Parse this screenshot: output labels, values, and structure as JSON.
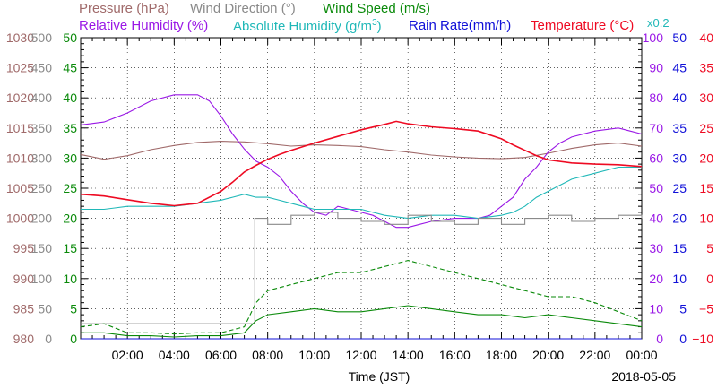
{
  "chart_data": {
    "type": "line",
    "xlabel": "Time (JST)",
    "date": "2018-05-05",
    "x_ticks": [
      "02:00",
      "04:00",
      "06:00",
      "08:00",
      "10:00",
      "12:00",
      "14:00",
      "16:00",
      "18:00",
      "20:00",
      "22:00",
      "00:00"
    ],
    "x_range_hours": [
      0,
      24
    ],
    "legend": [
      {
        "label": "Pressure (hPa)",
        "color": "#a06a6a"
      },
      {
        "label": "Wind Direction (°)",
        "color": "#8a8a8a"
      },
      {
        "label": "Wind Speed (m/s)",
        "color": "#0a8a0a"
      },
      {
        "label": "Relative Humidity (%)",
        "color": "#9a18e6"
      },
      {
        "label": "Absolute Humidity (g/m",
        "sup": "3",
        "close": ")",
        "color": "#20b8b8"
      },
      {
        "label": "Rain Rate(mm/h)",
        "color": "#1010d8"
      },
      {
        "label": "Temperature (°C)",
        "color": "#ee0a22"
      }
    ],
    "axes": {
      "pressure": {
        "ticks": [
          "980",
          "985",
          "990",
          "995",
          "1000",
          "1005",
          "1010",
          "1015",
          "1020",
          "1025",
          "1030"
        ],
        "range": [
          980,
          1030
        ],
        "color": "#a06a6a"
      },
      "wind_dir": {
        "ticks": [
          "0",
          "50",
          "100",
          "150",
          "200",
          "250",
          "300",
          "350",
          "400",
          "450",
          "500"
        ],
        "range": [
          0,
          500
        ],
        "color": "#8a8a8a"
      },
      "wind_speed": {
        "ticks": [
          "0",
          "5",
          "10",
          "15",
          "20",
          "25",
          "30",
          "35",
          "40",
          "45",
          "50"
        ],
        "range": [
          0,
          50
        ],
        "color": "#0a8a0a"
      },
      "rh": {
        "ticks": [
          "0",
          "10",
          "20",
          "30",
          "40",
          "50",
          "60",
          "70",
          "80",
          "90",
          "100"
        ],
        "range": [
          0,
          100
        ],
        "color": "#9a18e6"
      },
      "rain": {
        "ticks": [
          "0",
          "5",
          "10",
          "15",
          "20",
          "25",
          "30",
          "35",
          "40",
          "45",
          "50"
        ],
        "range": [
          0,
          50
        ],
        "color": "#1010d8",
        "multiplier": "x0.2"
      },
      "temp": {
        "ticks": [
          "−10",
          "−5",
          "0",
          "5",
          "10",
          "15",
          "20",
          "25",
          "30",
          "35",
          "40"
        ],
        "range": [
          -10,
          40
        ],
        "color": "#ee0a22"
      }
    },
    "series": [
      {
        "name": "Pressure (hPa)",
        "axis": "pressure",
        "color": "#a06a6a",
        "x": [
          0,
          1,
          2,
          3,
          4,
          5,
          6,
          7,
          8,
          9,
          10,
          11,
          12,
          13,
          14,
          15,
          16,
          17,
          18,
          19,
          20,
          21,
          22,
          23,
          24
        ],
        "y": [
          1010.6,
          1009.8,
          1010.4,
          1011.4,
          1012.1,
          1012.6,
          1012.8,
          1012.7,
          1012.4,
          1012.0,
          1012.2,
          1012.1,
          1011.9,
          1011.4,
          1011.0,
          1010.5,
          1010.2,
          1010.0,
          1009.9,
          1010.1,
          1010.8,
          1011.6,
          1012.2,
          1012.5,
          1012.0
        ]
      },
      {
        "name": "Relative Humidity (%)",
        "axis": "rh",
        "color": "#9a18e6",
        "x": [
          0,
          1,
          2,
          3,
          4,
          4.5,
          5,
          5.5,
          6,
          6.5,
          7,
          7.5,
          8,
          8.5,
          9,
          9.5,
          10,
          10.5,
          11,
          11.5,
          12,
          12.5,
          13,
          13.5,
          14,
          14.5,
          15,
          16,
          17,
          17.5,
          18,
          18.5,
          19,
          19.5,
          20,
          20.5,
          21,
          22,
          23,
          23.5,
          24
        ],
        "y": [
          71,
          72,
          75,
          79,
          81,
          81,
          81,
          79,
          74,
          68,
          63,
          59,
          57,
          54,
          49,
          45,
          42,
          41,
          44,
          43,
          42,
          41,
          39,
          37,
          37,
          38,
          39,
          40,
          40,
          41,
          44,
          47,
          53,
          57,
          62,
          65,
          67,
          69,
          70,
          69,
          68
        ]
      },
      {
        "name": "Absolute Humidity (g/m3)",
        "axis": "rh",
        "color": "#20b8b8",
        "x": [
          0,
          1,
          2,
          3,
          4,
          5,
          6,
          6.5,
          7,
          7.5,
          8,
          8.5,
          9,
          9.5,
          10,
          11,
          12,
          13,
          14,
          15,
          16,
          17,
          18,
          18.5,
          19,
          19.5,
          20,
          20.5,
          21,
          22,
          23,
          24
        ],
        "y": [
          43,
          43,
          44,
          44,
          44,
          45,
          46,
          47,
          48,
          47,
          47,
          46,
          45,
          44,
          43,
          43,
          43,
          41,
          40,
          41,
          41,
          40,
          41,
          42,
          44,
          47,
          49,
          51,
          53,
          55,
          57,
          57
        ]
      },
      {
        "name": "Temperature (°C)",
        "axis": "temp",
        "color": "#ee0a22",
        "x": [
          0,
          1,
          2,
          3,
          4,
          5,
          6,
          6.5,
          7,
          7.5,
          8,
          8.5,
          9,
          10,
          11,
          12,
          13,
          13.5,
          14,
          15,
          16,
          17,
          18,
          18.5,
          19,
          19.5,
          20,
          21,
          22,
          23,
          24
        ],
        "y": [
          14,
          13.7,
          13.1,
          12.5,
          12.1,
          12.5,
          14.5,
          16,
          17.7,
          18.8,
          19.8,
          20.6,
          21.3,
          22.5,
          23.6,
          24.7,
          25.6,
          26.1,
          25.7,
          25.2,
          24.9,
          24.5,
          23.2,
          22.2,
          21.3,
          20.4,
          19.7,
          19.2,
          19,
          18.9,
          18.6
        ]
      },
      {
        "name": "Wind Direction (°)",
        "axis": "wind_dir",
        "color": "#8a8a8a",
        "x": [
          0,
          7.4,
          7.45,
          8,
          9,
          10,
          11,
          12,
          13,
          14,
          15,
          16,
          17,
          18,
          19,
          20,
          21,
          22,
          23,
          24
        ],
        "y": [
          25,
          25,
          200,
          190,
          205,
          210,
          200,
          195,
          190,
          205,
          195,
          190,
          200,
          190,
          200,
          205,
          195,
          200,
          205,
          200
        ]
      },
      {
        "name": "Wind Speed (m/s) mean",
        "axis": "wind_speed",
        "color": "#0a8a0a",
        "x": [
          0,
          1,
          2,
          3,
          4,
          5,
          6,
          7,
          7.5,
          8,
          9,
          10,
          11,
          12,
          13,
          14,
          15,
          16,
          17,
          18,
          19,
          20,
          21,
          22,
          23,
          24
        ],
        "y": [
          1,
          1,
          0.5,
          0.5,
          0.3,
          0.5,
          0.5,
          1,
          3,
          4,
          4.5,
          5,
          4.5,
          4.5,
          5,
          5.5,
          5,
          4.5,
          4,
          4,
          3.5,
          4,
          3.5,
          3,
          2.5,
          2
        ]
      },
      {
        "name": "Wind Speed (m/s) gust",
        "axis": "wind_speed",
        "color": "#0a8a0a",
        "dashed": true,
        "x": [
          0,
          1,
          2,
          3,
          4,
          5,
          6,
          7,
          7.5,
          8,
          9,
          10,
          11,
          12,
          13,
          14,
          15,
          16,
          17,
          18,
          19,
          20,
          21,
          22,
          23,
          24
        ],
        "y": [
          2,
          2.5,
          1,
          1,
          0.8,
          1,
          1,
          2,
          6,
          8,
          9,
          10,
          11,
          11,
          12,
          13,
          12,
          11,
          10,
          9,
          8,
          7,
          7,
          6,
          4.5,
          3
        ]
      },
      {
        "name": "Rain Rate(mm/h)",
        "axis": "rain",
        "color": "#1010d8",
        "x": [
          0,
          24
        ],
        "y": [
          0,
          0
        ]
      }
    ]
  }
}
